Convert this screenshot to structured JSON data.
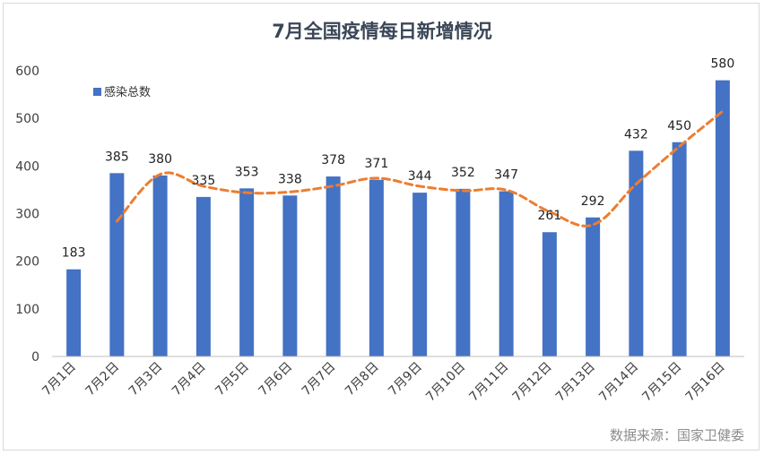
{
  "chart_data": {
    "type": "bar",
    "title": "7月全国疫情每日新增情况",
    "categories": [
      "7月1日",
      "7月2日",
      "7月3日",
      "7月4日",
      "7月5日",
      "7月6日",
      "7月7日",
      "7月8日",
      "7月9日",
      "7月10日",
      "7月11日",
      "7月12日",
      "7月13日",
      "7月14日",
      "7月15日",
      "7月16日"
    ],
    "series": [
      {
        "name": "感染总数",
        "values": [
          183,
          385,
          380,
          335,
          353,
          338,
          378,
          371,
          344,
          352,
          347,
          261,
          292,
          432,
          450,
          580
        ],
        "color": "#4472c4"
      }
    ],
    "trendline": {
      "type": "moving-average",
      "period": 2,
      "color": "#ed7d31",
      "style": "dashed"
    },
    "ylim": [
      0,
      600
    ],
    "yticks": [
      0,
      100,
      200,
      300,
      400,
      500,
      600
    ],
    "xlabel": "",
    "ylabel": "",
    "grid": false,
    "legend": "top-left",
    "data_labels": true
  },
  "footer": {
    "source": "数据来源：国家卫健委"
  }
}
